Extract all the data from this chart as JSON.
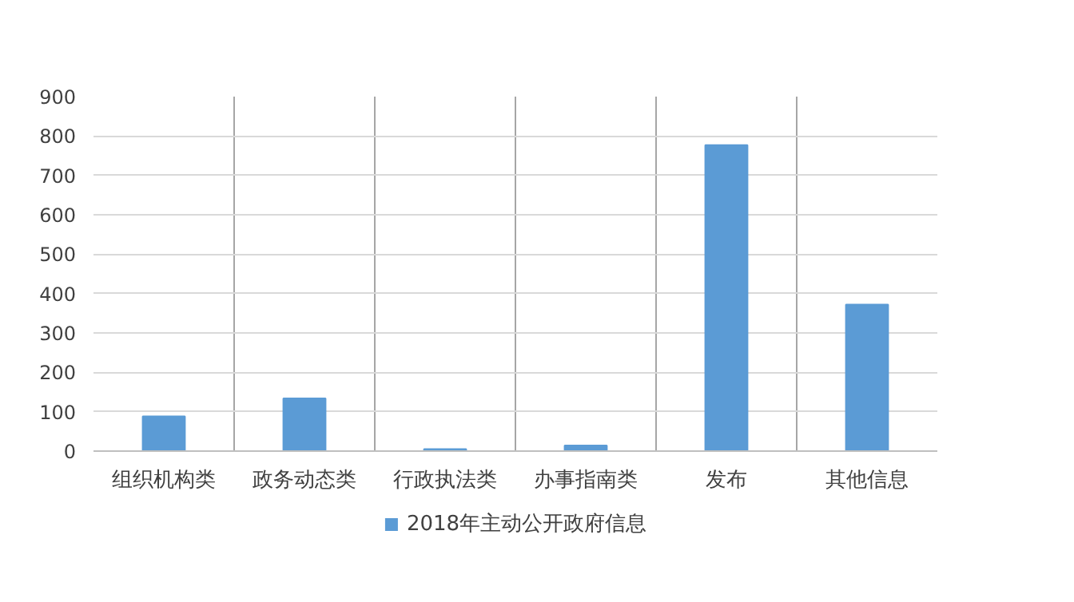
{
  "chart_data": {
    "type": "bar",
    "categories": [
      "组织机构类",
      "政务动态类",
      "行政执法类",
      "办事指南类",
      "发布",
      "其他信息"
    ],
    "series": [
      {
        "name": "2018年主动公开政府信息",
        "color": "#5b9bd5",
        "values": [
          88,
          134,
          5,
          14,
          777,
          372
        ]
      }
    ],
    "ylim": [
      0,
      900
    ],
    "yticks": [
      0,
      100,
      200,
      300,
      400,
      500,
      600,
      700,
      800,
      900
    ],
    "grid": "y",
    "legend": "bottom"
  }
}
